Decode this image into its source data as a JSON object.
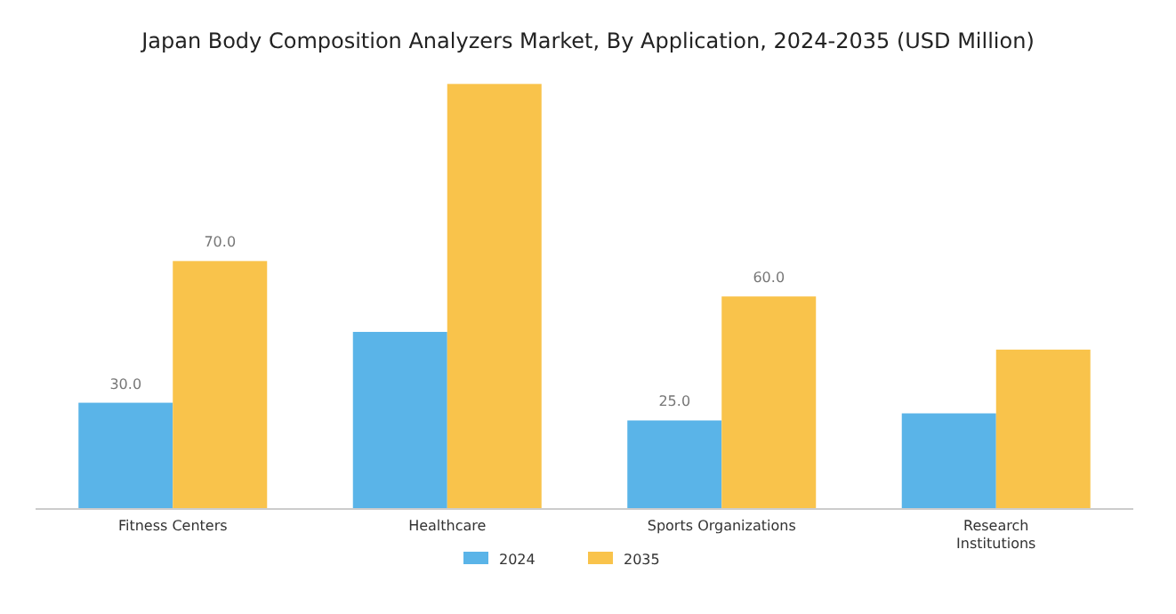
{
  "chart_data": {
    "type": "bar",
    "title": "Japan Body Composition Analyzers Market, By Application, 2024-2035 (USD Million)",
    "categories": [
      "Fitness Centers",
      "Healthcare",
      "Sports Organizations",
      "Research Institutions"
    ],
    "series": [
      {
        "name": "2024",
        "color": "#5ab4e8",
        "values": [
          30,
          50,
          25,
          27
        ],
        "value_labels": [
          "30.0",
          null,
          "25.0",
          null
        ]
      },
      {
        "name": "2035",
        "color": "#f9c34b",
        "values": [
          70,
          120,
          60,
          45
        ],
        "value_labels": [
          "70.0",
          null,
          "60.0",
          null
        ]
      }
    ],
    "legend": "bottom",
    "grid": false
  }
}
